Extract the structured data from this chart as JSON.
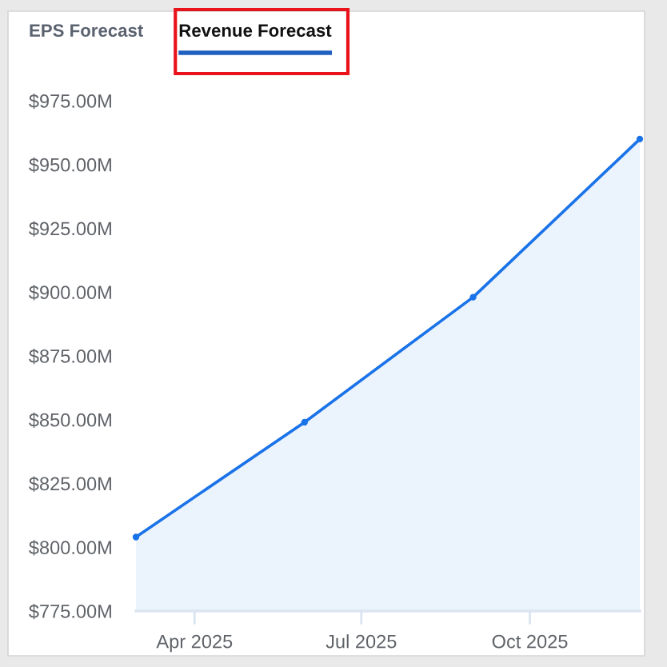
{
  "chart_data": {
    "type": "area",
    "title": "Revenue Forecast",
    "annotations": [
      "EPS Forecast"
    ],
    "x": [
      "2025-02-28",
      "2025-05-31",
      "2025-08-31",
      "2025-11-30"
    ],
    "series": [
      {
        "color": "#1a73e8",
        "values": [
          804,
          849,
          898,
          960
        ]
      }
    ],
    "xlim": [
      "2025-02-28",
      "2025-11-30"
    ],
    "xticks": [
      {
        "value": "2025-04-01",
        "label": "Apr 2025"
      },
      {
        "value": "2025-07-01",
        "label": "Jul 2025"
      },
      {
        "value": "2025-10-01",
        "label": "Oct 2025"
      }
    ],
    "ylim": [
      775,
      975
    ],
    "yticks": [
      {
        "value": 775,
        "label": "$775.00M"
      },
      {
        "value": 800,
        "label": "$800.00M"
      },
      {
        "value": 825,
        "label": "$825.00M"
      },
      {
        "value": 850,
        "label": "$850.00M"
      },
      {
        "value": 875,
        "label": "$875.00M"
      },
      {
        "value": 900,
        "label": "$900.00M"
      },
      {
        "value": 925,
        "label": "$925.00M"
      },
      {
        "value": 950,
        "label": "$950.00M"
      },
      {
        "value": 975,
        "label": "$975.00M"
      }
    ],
    "marker": "circle",
    "grid": false
  }
}
